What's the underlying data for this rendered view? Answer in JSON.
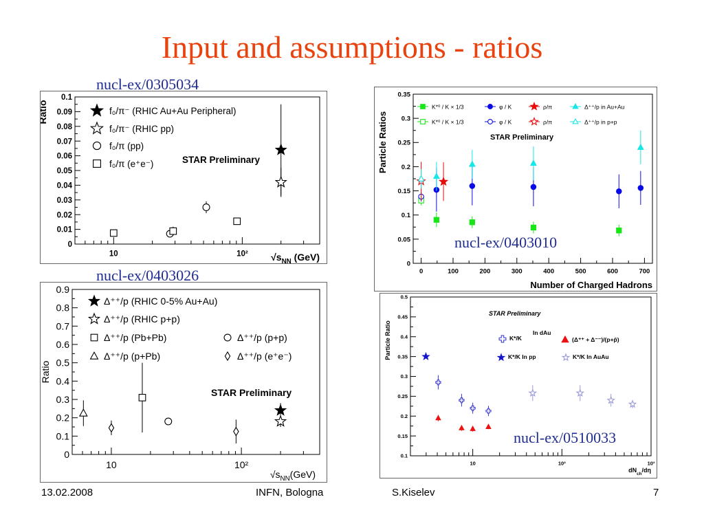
{
  "slide": {
    "title": "Input and assumptions - ratios",
    "refs": [
      "nucl-ex/0305034",
      "nucl-ex/0403026",
      "nucl-ex/0403010",
      "nucl-ex/0510033"
    ],
    "footer": {
      "date": "13.02.2008",
      "venue": "INFN, Bologna",
      "author": "S.Kiselev",
      "page": "7"
    }
  },
  "chart_data": [
    {
      "id": "f0-ratio",
      "type": "scatter",
      "xscale": "log",
      "xlim": [
        5,
        400
      ],
      "ylim": [
        0,
        0.1
      ],
      "ylabel": "Ratio",
      "xlabel_main": "√s",
      "xlabel_sub": "NN",
      "xlabel_unit": " (GeV)",
      "yticks": [
        "0",
        "0.01",
        "0.02",
        "0.03",
        "0.04",
        "0.05",
        "0.06",
        "0.07",
        "0.08",
        "0.09",
        "0.1"
      ],
      "xticks": [
        {
          "v": 10,
          "label": "10"
        },
        {
          "v": 100,
          "label": "10²"
        }
      ],
      "annotation": "STAR Preliminary",
      "series": [
        {
          "name": "f₀/π⁻ (RHIC Au+Au Peripheral)",
          "marker": "star-filled",
          "points": [
            {
              "x": 200,
              "y": 0.064,
              "err": 0.031
            }
          ]
        },
        {
          "name": "f₀/π⁻ (RHIC pp)",
          "marker": "star-open",
          "points": [
            {
              "x": 200,
              "y": 0.042,
              "err": 0.01
            }
          ]
        },
        {
          "name": "f₀/π (pp)",
          "marker": "circle-open",
          "points": [
            {
              "x": 27.4,
              "y": 0.007,
              "err": 0
            },
            {
              "x": 52.5,
              "y": 0.025,
              "err": 0.004
            }
          ]
        },
        {
          "name": "f₀/π (e⁺e⁻)",
          "marker": "square-open",
          "points": [
            {
              "x": 10,
              "y": 0.0075,
              "err": 0
            },
            {
              "x": 29,
              "y": 0.0088,
              "err": 0.003
            },
            {
              "x": 91,
              "y": 0.0155,
              "err": 0
            }
          ]
        }
      ]
    },
    {
      "id": "delta-ratio",
      "type": "scatter",
      "xscale": "log",
      "xlim": [
        5,
        400
      ],
      "ylim": [
        0,
        0.9
      ],
      "ylabel": "Ratio",
      "xlabel_main": "√s",
      "xlabel_sub": "NN",
      "xlabel_unit": "(GeV)",
      "yticks": [
        "0",
        "0.1",
        "0.2",
        "0.3",
        "0.4",
        "0.5",
        "0.6",
        "0.7",
        "0.8",
        "0.9"
      ],
      "xticks": [
        {
          "v": 10,
          "label": "10"
        },
        {
          "v": 100,
          "label": "10²"
        }
      ],
      "annotation": "STAR Preliminary",
      "series": [
        {
          "name": "Δ⁺⁺/p (RHIC 0-5% Au+Au)",
          "marker": "star-filled",
          "points": [
            {
              "x": 200,
              "y": 0.24,
              "err": 0.04
            }
          ]
        },
        {
          "name": "Δ⁺⁺/p (RHIC p+p)",
          "marker": "star-open",
          "points": [
            {
              "x": 200,
              "y": 0.18,
              "err": 0.03
            }
          ]
        },
        {
          "name": "Δ⁺⁺/p (Pb+Pb)",
          "marker": "square-open",
          "points": [
            {
              "x": 17.3,
              "y": 0.31,
              "err": 0.19
            }
          ]
        },
        {
          "name": "Δ⁺⁺/p (p+p)",
          "marker": "circle-open",
          "points": [
            {
              "x": 27.4,
              "y": 0.18,
              "err": 0
            }
          ]
        },
        {
          "name": "Δ⁺⁺/p (p+Pb)",
          "marker": "triangle-open",
          "points": [
            {
              "x": 6.1,
              "y": 0.225,
              "err": 0.07
            }
          ]
        },
        {
          "name": "Δ⁺⁺/p (e⁺e⁻)",
          "marker": "diamond-open",
          "points": [
            {
              "x": 10,
              "y": 0.145,
              "err": 0.04
            },
            {
              "x": 91,
              "y": 0.125,
              "err": 0.065
            }
          ]
        }
      ]
    },
    {
      "id": "particle-ratios-nch",
      "type": "scatter",
      "xlim": [
        -25,
        725
      ],
      "ylim": [
        0,
        0.35
      ],
      "ylabel": "Particle Ratios",
      "xlabel": "Number of Charged Hadrons",
      "yticks": [
        "0",
        "0.05",
        "0.1",
        "0.15",
        "0.2",
        "0.25",
        "0.3",
        "0.35"
      ],
      "xticks": [
        "0",
        "100",
        "200",
        "300",
        "400",
        "500",
        "600",
        "700"
      ],
      "annotation": "STAR Preliminary",
      "legend": [
        "K*⁰ / K × 1/3",
        "φ / K",
        "ρ/π",
        "Δ⁺⁺/p in Au+Au",
        "K*⁰ / K × 1/3",
        "φ / K",
        "ρ/π",
        "Δ⁺⁺/p in p+p"
      ],
      "series": [
        {
          "name": "K*⁰ / K × 1/3 (Au+Au)",
          "marker": "square-filled",
          "color": "#19e619",
          "points": [
            {
              "x": 48,
              "y": 0.09,
              "err": 0.015
            },
            {
              "x": 160,
              "y": 0.085,
              "err": 0.012
            },
            {
              "x": 352,
              "y": 0.074,
              "err": 0.012
            },
            {
              "x": 620,
              "y": 0.068,
              "err": 0.012
            }
          ]
        },
        {
          "name": "φ / K (Au+Au)",
          "marker": "circle-filled",
          "color": "#0a0ae6",
          "points": [
            {
              "x": 48,
              "y": 0.152,
              "err": 0.045
            },
            {
              "x": 160,
              "y": 0.16,
              "err": 0.04
            },
            {
              "x": 352,
              "y": 0.158,
              "err": 0.04
            },
            {
              "x": 620,
              "y": 0.149,
              "err": 0.035
            },
            {
              "x": 688,
              "y": 0.156,
              "err": 0.035
            }
          ]
        },
        {
          "name": "ρ/π (Au+Au)",
          "marker": "star-filled",
          "color": "#e60a0a",
          "points": [
            {
              "x": 70,
              "y": 0.169,
              "err": 0.04
            }
          ]
        },
        {
          "name": "Δ⁺⁺/p in Au+Au",
          "marker": "triangle-filled",
          "color": "#19e6e6",
          "points": [
            {
              "x": 48,
              "y": 0.18,
              "err": 0.03
            },
            {
              "x": 160,
              "y": 0.205,
              "err": 0.03
            },
            {
              "x": 352,
              "y": 0.207,
              "err": 0.035
            },
            {
              "x": 688,
              "y": 0.24,
              "err": 0.035
            }
          ]
        },
        {
          "name": "K*⁰ / K × 1/3 (p+p)",
          "marker": "square-open",
          "color": "#19e619",
          "points": [
            {
              "x": 0,
              "y": 0.13,
              "err": 0.01
            }
          ]
        },
        {
          "name": "φ / K (p+p)",
          "marker": "circle-open",
          "color": "#0a0ae6",
          "points": [
            {
              "x": 0,
              "y": 0.138,
              "err": 0.01
            }
          ]
        },
        {
          "name": "ρ/π (p+p)",
          "marker": "star-open",
          "color": "#e60a0a",
          "points": [
            {
              "x": 0,
              "y": 0.17,
              "err": 0.04
            }
          ]
        },
        {
          "name": "Δ⁺⁺/p in p+p",
          "marker": "triangle-open",
          "color": "#19e6e6",
          "points": [
            {
              "x": 0,
              "y": 0.175,
              "err": 0.02
            }
          ]
        }
      ]
    },
    {
      "id": "particle-ratio-dndeta",
      "type": "scatter",
      "xscale": "log",
      "xlim": [
        2,
        1000
      ],
      "ylim": [
        0.1,
        0.5
      ],
      "ylabel": "Particle Ratio",
      "xlabel_main": "dN",
      "xlabel_sub": "ch",
      "xlabel_unit": "/dη",
      "yticks": [
        "0.1",
        "0.15",
        "0.2",
        "0.25",
        "0.3",
        "0.35",
        "0.4",
        "0.45",
        "0.5"
      ],
      "xticks": [
        {
          "v": 10,
          "label": "10"
        },
        {
          "v": 100,
          "label": "10²"
        },
        {
          "v": 1000,
          "label": "10³"
        }
      ],
      "annotation": "STAR Preliminary",
      "legend": [
        "K*/K",
        "In dAu",
        "(Δ⁺⁺ + Δ⁻⁻)/(p+p̄)",
        "K*/K In pp",
        "K*/K In AuAu"
      ],
      "series": [
        {
          "name": "K*/K In pp",
          "marker": "star-filled",
          "color": "#1616c8",
          "points": [
            {
              "x": 2.98,
              "y": 0.35,
              "err": 0
            }
          ]
        },
        {
          "name": "K*/K In dAu",
          "marker": "cross-open",
          "color": "#3a3ad4",
          "points": [
            {
              "x": 4.1,
              "y": 0.285,
              "err": 0.018
            },
            {
              "x": 7.5,
              "y": 0.24,
              "err": 0.016
            },
            {
              "x": 10,
              "y": 0.22,
              "err": 0.014
            },
            {
              "x": 15,
              "y": 0.213,
              "err": 0.013
            }
          ]
        },
        {
          "name": "(Δ⁺⁺ + Δ⁻⁻)/(p+p̄) In dAu",
          "marker": "triangle-filled",
          "color": "#ee1111",
          "points": [
            {
              "x": 4.1,
              "y": 0.195,
              "err": 0.008
            },
            {
              "x": 7.5,
              "y": 0.17,
              "err": 0.007
            },
            {
              "x": 10,
              "y": 0.168,
              "err": 0.007
            },
            {
              "x": 15,
              "y": 0.173,
              "err": 0.006
            }
          ]
        },
        {
          "name": "K*/K In AuAu",
          "marker": "star-open",
          "color": "#9a9ad8",
          "points": [
            {
              "x": 47,
              "y": 0.258,
              "err": 0.02
            },
            {
              "x": 160,
              "y": 0.258,
              "err": 0.02
            },
            {
              "x": 355,
              "y": 0.24,
              "err": 0.016
            },
            {
              "x": 620,
              "y": 0.23,
              "err": 0.01
            }
          ]
        }
      ]
    }
  ]
}
